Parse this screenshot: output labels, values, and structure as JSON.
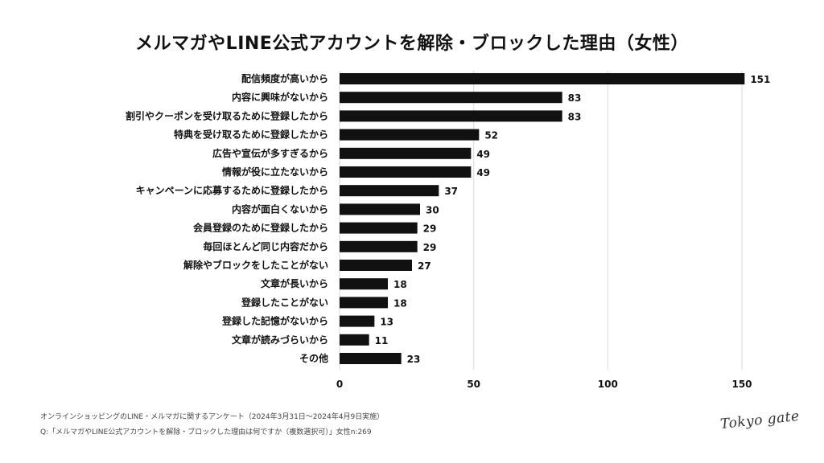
{
  "chart_data": {
    "type": "bar",
    "orientation": "horizontal",
    "title": "メルマガやLINE公式アカウントを解除・ブロックした理由（女性）",
    "categories": [
      "配信頻度が高いから",
      "内容に興味がないから",
      "割引やクーポンを受け取るために登録したから",
      "特典を受け取るために登録したから",
      "広告や宣伝が多すぎるから",
      "情報が役に立たないから",
      "キャンペーンに応募するために登録したから",
      "内容が面白くないから",
      "会員登録のために登録したから",
      "毎回ほとんど同じ内容だから",
      "解除やブロックをしたことがない",
      "文章が長いから",
      "登録したことがない",
      "登録した記憶がないから",
      "文章が読みづらいから",
      "その他"
    ],
    "values": [
      151,
      83,
      83,
      52,
      49,
      49,
      37,
      30,
      29,
      29,
      27,
      18,
      18,
      13,
      11,
      23
    ],
    "value_labels": [
      "151",
      "83",
      "83",
      "52",
      "49",
      "49",
      "37",
      "30",
      "29",
      "29",
      "27",
      "18",
      "18",
      "13",
      "11",
      "23"
    ],
    "xlim": [
      0,
      150
    ],
    "xticks": [
      0,
      50,
      100,
      150
    ],
    "xtick_labels": [
      "0",
      "50",
      "100",
      "150"
    ],
    "grid": true,
    "bar_color": "#111111",
    "grid_color": "#d9d9d9"
  },
  "footnotes": {
    "survey": "オンラインショッピングのLINE・メルマガに関するアンケート（2024年3月31日〜2024年4月9日実施）",
    "question": "Q:「メルマガやLINE公式アカウントを解除・ブロックした理由は何ですか（複数選択可）」女性n:269"
  },
  "logo": {
    "text": "Tokyo gate"
  }
}
